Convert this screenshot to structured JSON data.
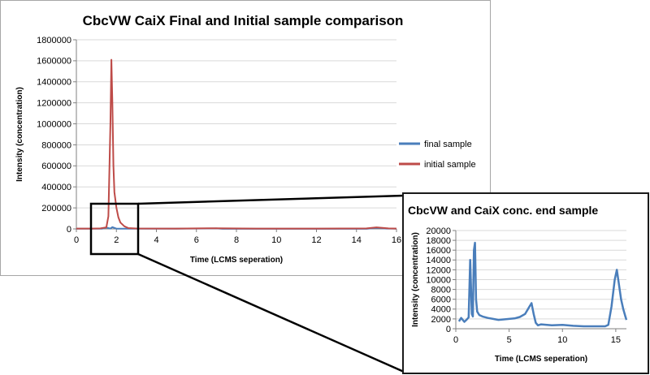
{
  "chart_data": [
    {
      "type": "line",
      "title": "CbcVW CaiX Final and Initial sample comparison",
      "xlabel": "Time (LCMS seperation)",
      "ylabel": "Intensity (concentration)",
      "xlim": [
        0,
        16
      ],
      "ylim": [
        0,
        1800000
      ],
      "x_ticks": [
        0,
        2,
        4,
        6,
        8,
        10,
        12,
        14,
        16
      ],
      "y_ticks": [
        0,
        200000,
        400000,
        600000,
        800000,
        1000000,
        1200000,
        1400000,
        1600000,
        1800000
      ],
      "grid": "horizontal",
      "legend": "right",
      "series": [
        {
          "name": "final sample",
          "color": "#4a7ebb",
          "x": [
            0,
            1.0,
            1.3,
            1.5,
            1.7,
            1.8,
            2.0,
            3.0,
            5.0,
            7.0,
            7.3,
            9.0,
            12.0,
            14.5,
            15.0,
            15.5,
            16.0
          ],
          "y": [
            1500,
            1500,
            2000,
            13000,
            3000,
            17000,
            2500,
            2000,
            1800,
            4500,
            1000,
            800,
            500,
            500,
            10000,
            3000,
            1500
          ]
        },
        {
          "name": "initial sample",
          "color": "#be4b48",
          "x": [
            0,
            0.8,
            1.2,
            1.5,
            1.6,
            1.7,
            1.75,
            1.8,
            1.85,
            1.9,
            2.0,
            2.1,
            2.2,
            2.4,
            2.6,
            3.0,
            5.0,
            7.0,
            9.0,
            12.0,
            14.5,
            15.0,
            15.3,
            15.6,
            16.0
          ],
          "y": [
            3000,
            3000,
            5000,
            15000,
            120000,
            1000000,
            1610000,
            1200000,
            600000,
            350000,
            200000,
            110000,
            60000,
            25000,
            8000,
            4000,
            3000,
            6000,
            3000,
            3000,
            5000,
            15000,
            10000,
            5000,
            3000
          ]
        }
      ]
    },
    {
      "type": "line",
      "title": "CbcVW and CaiX conc. end sample",
      "xlabel": "Time (LCMS seperation)",
      "ylabel": "Intensity (concentration)",
      "xlim": [
        0,
        16
      ],
      "ylim": [
        0,
        20000
      ],
      "x_ticks": [
        0,
        5,
        10,
        15
      ],
      "y_ticks": [
        0,
        2000,
        4000,
        6000,
        8000,
        10000,
        12000,
        14000,
        16000,
        18000,
        20000
      ],
      "grid": "horizontal",
      "legend": "none",
      "series": [
        {
          "color": "#4a7ebb",
          "x": [
            0.3,
            0.5,
            0.8,
            1.0,
            1.2,
            1.35,
            1.5,
            1.6,
            1.7,
            1.8,
            1.9,
            2.0,
            2.2,
            2.5,
            3.0,
            3.5,
            4.0,
            4.5,
            5.0,
            5.5,
            6.0,
            6.5,
            6.9,
            7.1,
            7.3,
            7.5,
            7.7,
            8.0,
            9.0,
            10.0,
            11.0,
            12.0,
            13.0,
            14.0,
            14.3,
            14.6,
            14.9,
            15.1,
            15.3,
            15.5,
            15.7,
            15.9,
            16.0
          ],
          "y": [
            1500,
            2200,
            1400,
            1800,
            2300,
            14000,
            3000,
            2500,
            16000,
            17500,
            6000,
            3500,
            2800,
            2500,
            2200,
            2000,
            1800,
            1900,
            2000,
            2100,
            2400,
            3000,
            4500,
            5200,
            3000,
            1200,
            700,
            900,
            700,
            800,
            600,
            500,
            500,
            500,
            800,
            4500,
            10000,
            12000,
            9000,
            6000,
            4000,
            2500,
            1800
          ]
        }
      ]
    }
  ],
  "main_legend": [
    {
      "label": "final sample",
      "color": "#4a7ebb"
    },
    {
      "label": "initial sample",
      "color": "#be4b48"
    }
  ]
}
